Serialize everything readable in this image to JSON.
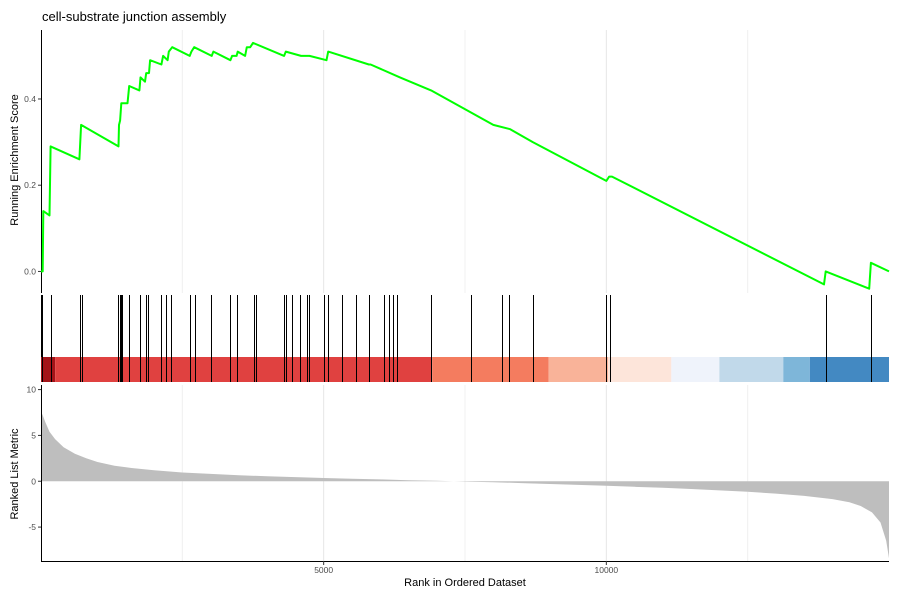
{
  "chart_data": {
    "type": "line",
    "title": "cell-substrate junction assembly",
    "xlabel": "Rank in Ordered Dataset",
    "xlim": [
      0,
      15000
    ],
    "x_ticks": [
      5000,
      10000
    ],
    "grid": "vertical major gridlines",
    "panels": [
      {
        "name": "running-enrichment",
        "ylabel": "Running Enrichment Score",
        "ylim": [
          -0.05,
          0.56
        ],
        "y_ticks": [
          0.0,
          0.2,
          0.4
        ],
        "line_color": "#00ff00",
        "points": [
          [
            0,
            0.0
          ],
          [
            30,
            0.0
          ],
          [
            40,
            0.14
          ],
          [
            150,
            0.13
          ],
          [
            170,
            0.29
          ],
          [
            680,
            0.26
          ],
          [
            710,
            0.34
          ],
          [
            1370,
            0.29
          ],
          [
            1380,
            0.34
          ],
          [
            1400,
            0.35
          ],
          [
            1420,
            0.39
          ],
          [
            1530,
            0.39
          ],
          [
            1560,
            0.43
          ],
          [
            1740,
            0.42
          ],
          [
            1760,
            0.45
          ],
          [
            1840,
            0.44
          ],
          [
            1860,
            0.46
          ],
          [
            1910,
            0.46
          ],
          [
            1930,
            0.49
          ],
          [
            2130,
            0.48
          ],
          [
            2160,
            0.5
          ],
          [
            2240,
            0.49
          ],
          [
            2260,
            0.51
          ],
          [
            2320,
            0.52
          ],
          [
            2630,
            0.5
          ],
          [
            2660,
            0.51
          ],
          [
            2710,
            0.52
          ],
          [
            3020,
            0.5
          ],
          [
            3050,
            0.51
          ],
          [
            3350,
            0.49
          ],
          [
            3380,
            0.5
          ],
          [
            3460,
            0.5
          ],
          [
            3480,
            0.51
          ],
          [
            3610,
            0.5
          ],
          [
            3640,
            0.52
          ],
          [
            3700,
            0.52
          ],
          [
            3750,
            0.53
          ],
          [
            4300,
            0.5
          ],
          [
            4330,
            0.51
          ],
          [
            4600,
            0.5
          ],
          [
            4750,
            0.5
          ],
          [
            5050,
            0.49
          ],
          [
            5080,
            0.51
          ],
          [
            5800,
            0.48
          ],
          [
            5830,
            0.48
          ],
          [
            6350,
            0.45
          ],
          [
            6900,
            0.42
          ],
          [
            8000,
            0.34
          ],
          [
            8300,
            0.33
          ],
          [
            8700,
            0.3
          ],
          [
            10000,
            0.21
          ],
          [
            10050,
            0.22
          ],
          [
            10100,
            0.22
          ],
          [
            13850,
            -0.03
          ],
          [
            13880,
            0.0
          ],
          [
            14650,
            -0.04
          ],
          [
            14680,
            0.02
          ],
          [
            15000,
            0.0
          ]
        ]
      },
      {
        "name": "hit-positions",
        "hits": [
          20,
          170,
          690,
          720,
          1370,
          1390,
          1420,
          1440,
          1550,
          1760,
          1850,
          1900,
          2120,
          2210,
          2300,
          2640,
          2730,
          3010,
          3340,
          3470,
          3760,
          3800,
          4290,
          4340,
          4440,
          4580,
          4710,
          4740,
          5000,
          5070,
          5320,
          5570,
          5810,
          6060,
          6150,
          6230,
          6290,
          6890,
          7610,
          8160,
          8270,
          8710,
          9990,
          10060,
          13890,
          14680
        ]
      },
      {
        "name": "rank-color-bar",
        "segments": [
          {
            "from": 0,
            "to": 250,
            "color": "#a31318"
          },
          {
            "from": 250,
            "to": 6920,
            "color": "#e04140"
          },
          {
            "from": 6920,
            "to": 8980,
            "color": "#f47c5f"
          },
          {
            "from": 8980,
            "to": 10030,
            "color": "#f9b399"
          },
          {
            "from": 10030,
            "to": 11150,
            "color": "#fde5da"
          },
          {
            "from": 11150,
            "to": 12000,
            "color": "#eff3fb"
          },
          {
            "from": 12000,
            "to": 13130,
            "color": "#c1d9ea"
          },
          {
            "from": 13130,
            "to": 13600,
            "color": "#7eb6d9"
          },
          {
            "from": 13600,
            "to": 15000,
            "color": "#4389c2"
          }
        ]
      },
      {
        "name": "ranked-list-metric",
        "ylabel": "Ranked List Metric",
        "ylim": [
          -8.7,
          10.5
        ],
        "y_ticks": [
          -5,
          0,
          5,
          10
        ],
        "fill_color": "#bebebe",
        "points": [
          [
            0,
            7.6
          ],
          [
            30,
            7.2
          ],
          [
            80,
            6.4
          ],
          [
            150,
            5.4
          ],
          [
            250,
            4.6
          ],
          [
            400,
            3.7
          ],
          [
            600,
            3.0
          ],
          [
            800,
            2.5
          ],
          [
            1000,
            2.1
          ],
          [
            1300,
            1.7
          ],
          [
            1600,
            1.45
          ],
          [
            2000,
            1.2
          ],
          [
            2500,
            0.95
          ],
          [
            3000,
            0.8
          ],
          [
            3500,
            0.65
          ],
          [
            4000,
            0.55
          ],
          [
            4500,
            0.45
          ],
          [
            5000,
            0.35
          ],
          [
            5500,
            0.27
          ],
          [
            6000,
            0.2
          ],
          [
            6500,
            0.12
          ],
          [
            7000,
            0.05
          ],
          [
            7300,
            0.0
          ],
          [
            7600,
            -0.05
          ],
          [
            8000,
            -0.1
          ],
          [
            8500,
            -0.2
          ],
          [
            9000,
            -0.3
          ],
          [
            9500,
            -0.4
          ],
          [
            10000,
            -0.5
          ],
          [
            10500,
            -0.6
          ],
          [
            11000,
            -0.7
          ],
          [
            11500,
            -0.85
          ],
          [
            12000,
            -1.0
          ],
          [
            12500,
            -1.15
          ],
          [
            13000,
            -1.35
          ],
          [
            13500,
            -1.6
          ],
          [
            14000,
            -1.95
          ],
          [
            14300,
            -2.3
          ],
          [
            14500,
            -2.7
          ],
          [
            14700,
            -3.4
          ],
          [
            14850,
            -4.5
          ],
          [
            14950,
            -6.5
          ],
          [
            15000,
            -8.4
          ]
        ]
      }
    ]
  }
}
